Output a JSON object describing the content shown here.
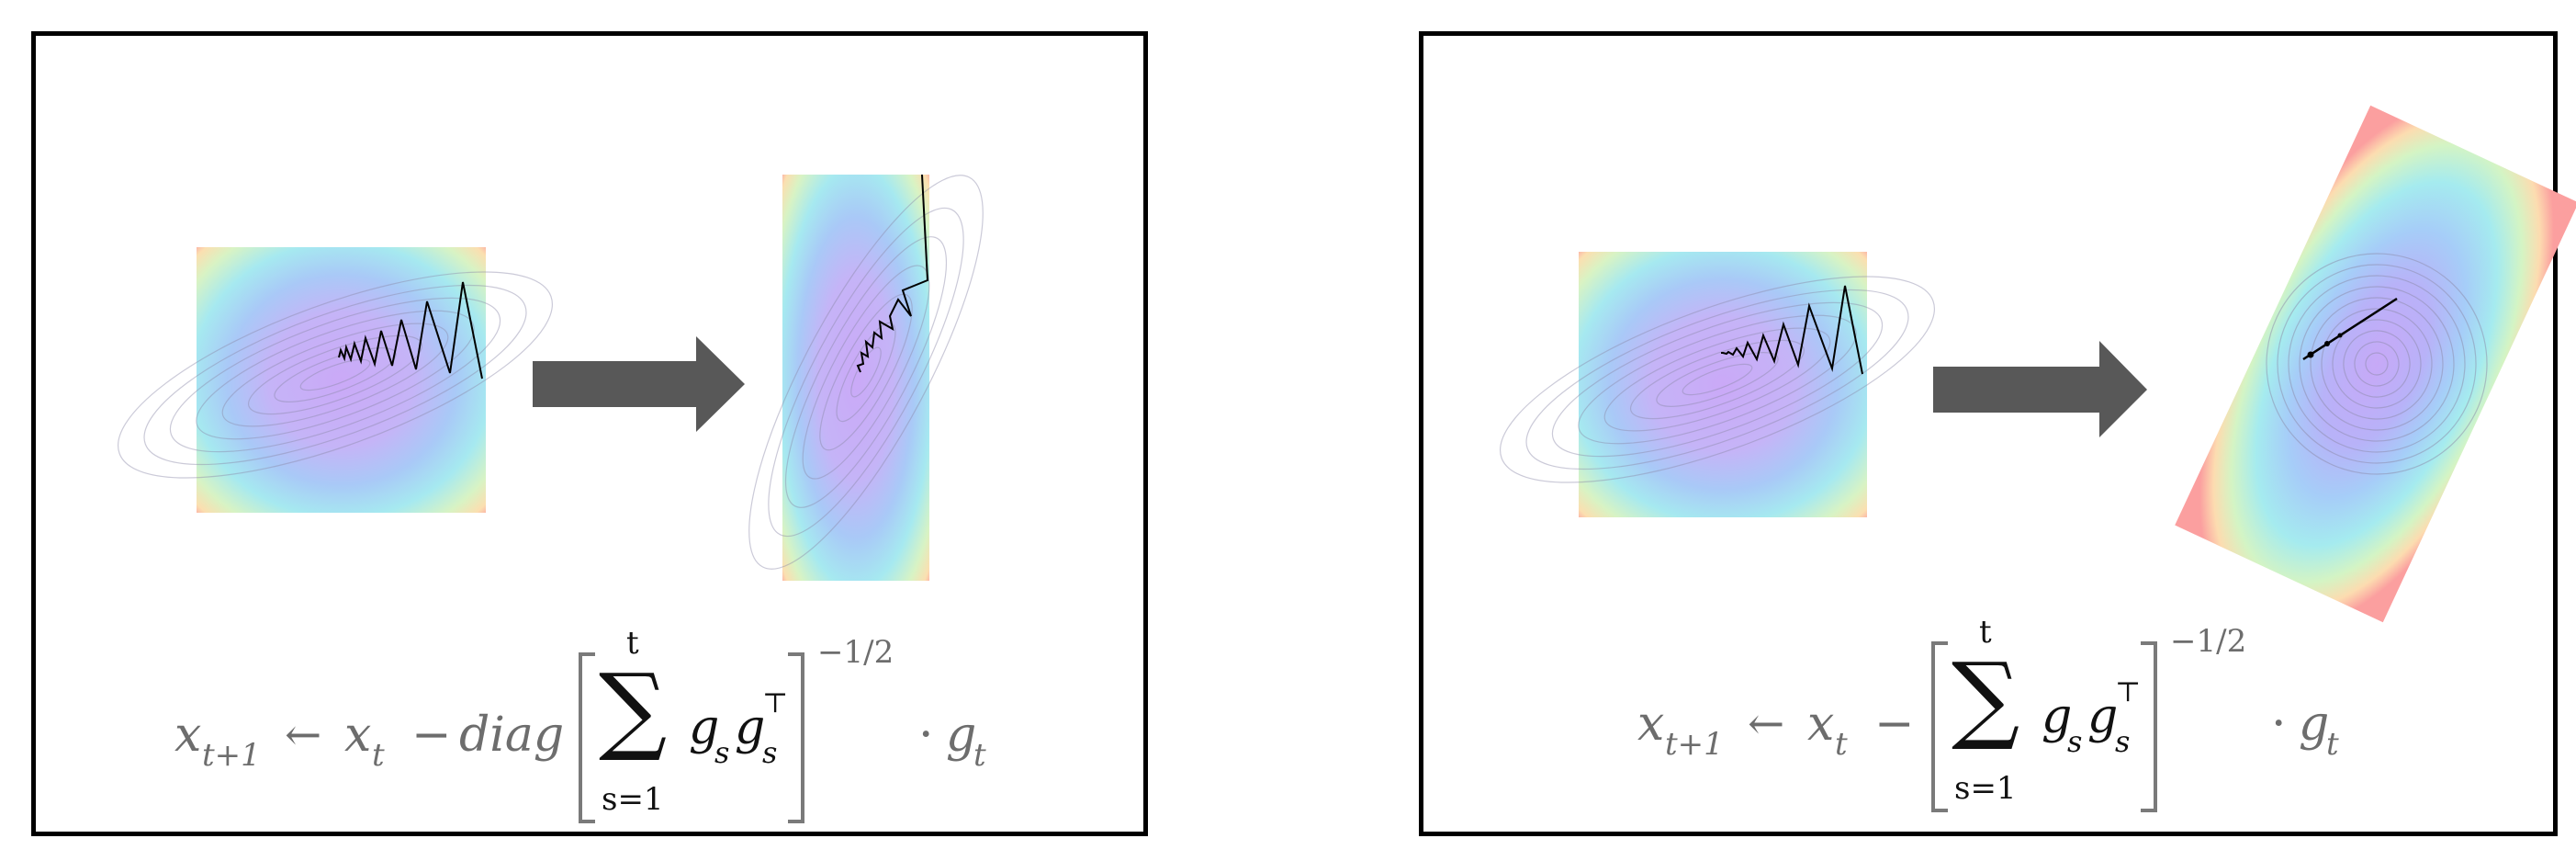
{
  "panels": [
    {
      "id": "diagonal-preconditioning",
      "formula": {
        "lhs": "x",
        "lhs_sub": "t+1",
        "arrow": "←",
        "x": "x",
        "x_sub": "t",
        "minus": "−",
        "diag": "diag",
        "sum_symbol": "∑",
        "sum_upper": "t",
        "sum_lower": "s=1",
        "g": "g",
        "g_sub": "s",
        "gT": "g",
        "gT_sub": "s",
        "gT_sup": "⊤",
        "exponent": "−1/2",
        "dot": "·",
        "g_t": "g",
        "g_t_sub": "t"
      }
    },
    {
      "id": "full-matrix-preconditioning",
      "formula": {
        "lhs": "x",
        "lhs_sub": "t+1",
        "arrow": "←",
        "x": "x",
        "x_sub": "t",
        "minus": "−",
        "sum_symbol": "∑",
        "sum_upper": "t",
        "sum_lower": "s=1",
        "g": "g",
        "g_sub": "s",
        "gT": "g",
        "gT_sub": "s",
        "gT_sup": "⊤",
        "exponent": "−1/2",
        "dot": "·",
        "g_t": "g",
        "g_t_sub": "t"
      }
    }
  ],
  "colors": {
    "arrow": "#585858",
    "formula_text": "#6d6d6d",
    "border": "#000000",
    "contour_center": "#c9aaf6",
    "contour_edge": "#f9a0a0"
  }
}
